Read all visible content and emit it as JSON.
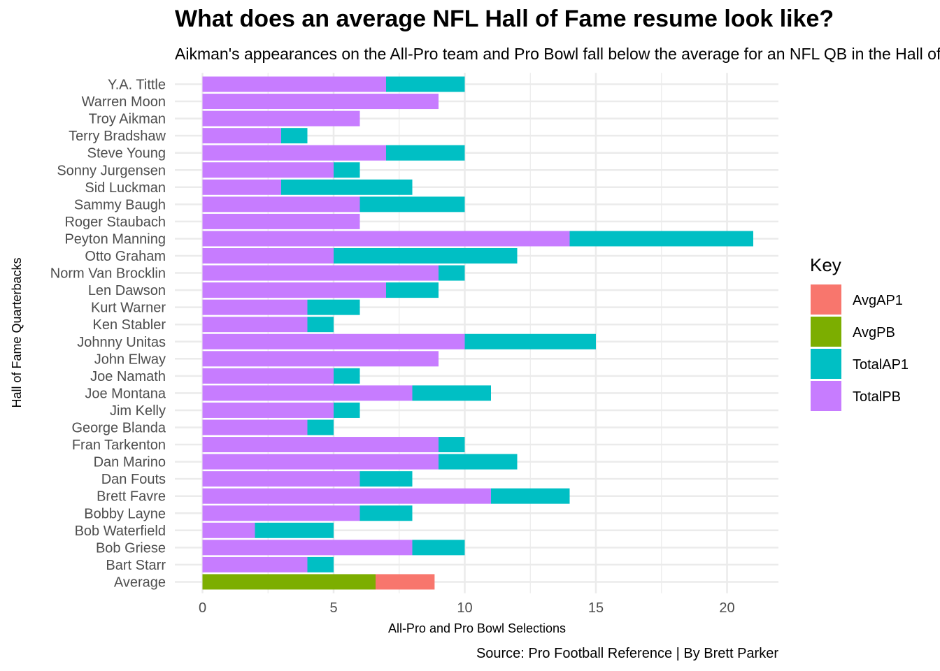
{
  "chart_data": {
    "type": "bar",
    "orientation": "horizontal",
    "stacked": true,
    "title": "What does an average NFL Hall of Fame resume look like?",
    "subtitle": "Aikman's appearances on the All-Pro team and Pro Bowl fall below the average for an NFL QB in the Hall of Fame",
    "xlabel": "All-Pro and Pro Bowl Selections",
    "ylabel": "Hall of Fame Quarterbacks",
    "caption": "Source: Pro Football Reference | By Brett Parker",
    "xlim": [
      0,
      22
    ],
    "xticks": [
      0,
      5,
      10,
      15,
      20
    ],
    "grid": true,
    "legend": {
      "title": "Key",
      "position": "right",
      "entries": [
        {
          "name": "AvgAP1",
          "color": "#F8766D"
        },
        {
          "name": "AvgPB",
          "color": "#7CAE00"
        },
        {
          "name": "TotalAP1",
          "color": "#00BFC4"
        },
        {
          "name": "TotalPB",
          "color": "#C77CFF"
        }
      ]
    },
    "categories": [
      "Y.A. Tittle",
      "Warren Moon",
      "Troy Aikman",
      "Terry Bradshaw",
      "Steve Young",
      "Sonny Jurgensen",
      "Sid Luckman",
      "Sammy Baugh",
      "Roger Staubach",
      "Peyton Manning",
      "Otto Graham",
      "Norm Van Brocklin",
      "Len Dawson",
      "Kurt Warner",
      "Ken Stabler",
      "Johnny Unitas",
      "John Elway",
      "Joe Namath",
      "Joe Montana",
      "Jim Kelly",
      "George Blanda",
      "Fran Tarkenton",
      "Dan Marino",
      "Dan Fouts",
      "Brett Favre",
      "Bobby Layne",
      "Bob Waterfield",
      "Bob Griese",
      "Bart Starr",
      "Average"
    ],
    "series": [
      {
        "name": "TotalPB",
        "color": "#C77CFF",
        "values": [
          7,
          9,
          6,
          3,
          7,
          5,
          3,
          6,
          6,
          14,
          5,
          9,
          7,
          4,
          4,
          10,
          9,
          5,
          8,
          5,
          4,
          9,
          9,
          6,
          11,
          6,
          2,
          8,
          4,
          0
        ]
      },
      {
        "name": "TotalAP1",
        "color": "#00BFC4",
        "values": [
          3,
          0,
          0,
          1,
          3,
          1,
          5,
          4,
          0,
          7,
          7,
          1,
          2,
          2,
          1,
          5,
          0,
          1,
          3,
          1,
          1,
          1,
          3,
          2,
          3,
          2,
          3,
          2,
          1,
          0
        ]
      },
      {
        "name": "AvgPB",
        "color": "#7CAE00",
        "values": [
          0,
          0,
          0,
          0,
          0,
          0,
          0,
          0,
          0,
          0,
          0,
          0,
          0,
          0,
          0,
          0,
          0,
          0,
          0,
          0,
          0,
          0,
          0,
          0,
          0,
          0,
          0,
          0,
          0,
          6.6
        ]
      },
      {
        "name": "AvgAP1",
        "color": "#F8766D",
        "values": [
          0,
          0,
          0,
          0,
          0,
          0,
          0,
          0,
          0,
          0,
          0,
          0,
          0,
          0,
          0,
          0,
          0,
          0,
          0,
          0,
          0,
          0,
          0,
          0,
          0,
          0,
          0,
          0,
          0,
          2.25
        ]
      }
    ]
  }
}
